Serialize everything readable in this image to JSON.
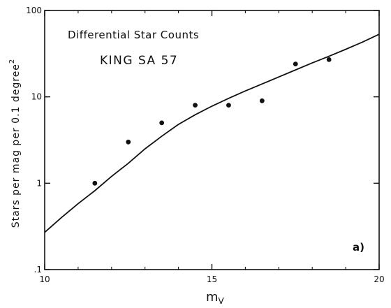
{
  "chart_data": {
    "type": "scatter",
    "title": "Differential Star Counts",
    "subtitle": "KING SA 57",
    "panel_label": "a)",
    "xlabel": "m",
    "xlabel_subscript": "V",
    "ylabel": "Stars per mag per 0.1 degree",
    "ylabel_superscript": "2",
    "xlim": [
      10,
      20
    ],
    "ylim": [
      0.1,
      100
    ],
    "yscale": "log",
    "grid": false,
    "x_ticks": [
      10,
      15,
      20
    ],
    "x_tick_labels": [
      "10",
      "15",
      "20"
    ],
    "y_ticks": [
      0.1,
      1,
      10,
      100
    ],
    "y_tick_labels": [
      ".1",
      "1",
      "10",
      "100"
    ],
    "series": [
      {
        "kind": "points",
        "x": [
          11.5,
          12.5,
          13.5,
          14.5,
          15.5,
          16.5,
          17.5,
          18.5
        ],
        "y": [
          1.0,
          3.0,
          5.0,
          8.0,
          8.0,
          9.0,
          24.0,
          27.0
        ]
      },
      {
        "kind": "line",
        "x": [
          10.0,
          10.5,
          11.0,
          11.5,
          12.0,
          12.5,
          13.0,
          13.5,
          14.0,
          14.5,
          15.0,
          15.5,
          16.0,
          16.5,
          17.0,
          17.5,
          18.0,
          18.5,
          19.0,
          19.5,
          20.0
        ],
        "y": [
          0.27,
          0.4,
          0.58,
          0.82,
          1.2,
          1.7,
          2.5,
          3.5,
          4.8,
          6.2,
          7.8,
          9.6,
          11.7,
          14.1,
          17.0,
          20.5,
          24.7,
          29.5,
          35.5,
          43.0,
          53.0
        ]
      }
    ]
  }
}
